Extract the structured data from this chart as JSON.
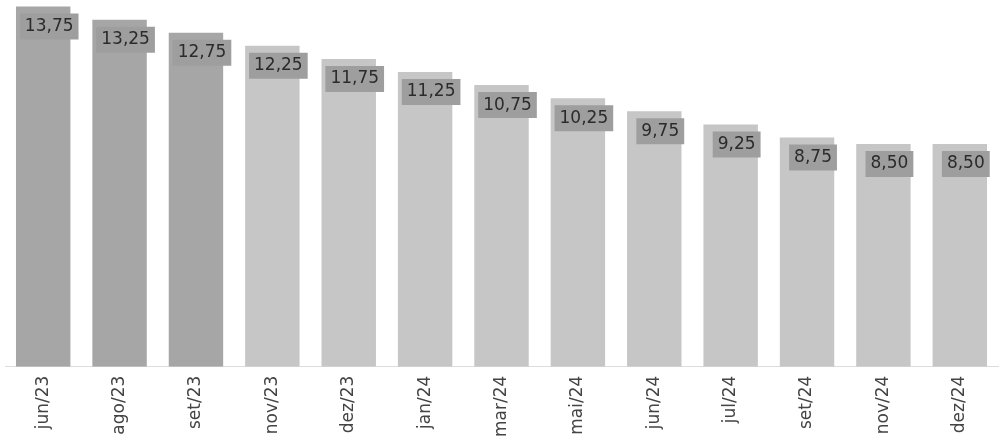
{
  "chart_data": {
    "type": "bar",
    "categories": [
      "jun/23",
      "ago/23",
      "set/23",
      "nov/23",
      "dez/23",
      "jan/24",
      "mar/24",
      "mai/24",
      "jun/24",
      "jul/24",
      "set/24",
      "nov/24",
      "dez/24"
    ],
    "values": [
      13.75,
      13.25,
      12.75,
      12.25,
      11.75,
      11.25,
      10.75,
      10.25,
      9.75,
      9.25,
      8.75,
      8.5,
      8.5
    ],
    "colors": [
      "#a6a6a6",
      "#a6a6a6",
      "#a6a6a6",
      "#c6c6c6",
      "#c6c6c6",
      "#c6c6c6",
      "#c6c6c6",
      "#c6c6c6",
      "#c6c6c6",
      "#c6c6c6",
      "#c6c6c6",
      "#c6c6c6",
      "#c6c6c6"
    ],
    "value_labels": [
      "13,75",
      "13,25",
      "12,75",
      "12,25",
      "11,75",
      "11,25",
      "10,75",
      "10,25",
      "9,75",
      "9,25",
      "8,75",
      "8,50",
      "8,50"
    ],
    "tick_labels": "x",
    "grid": false,
    "legend": false
  }
}
